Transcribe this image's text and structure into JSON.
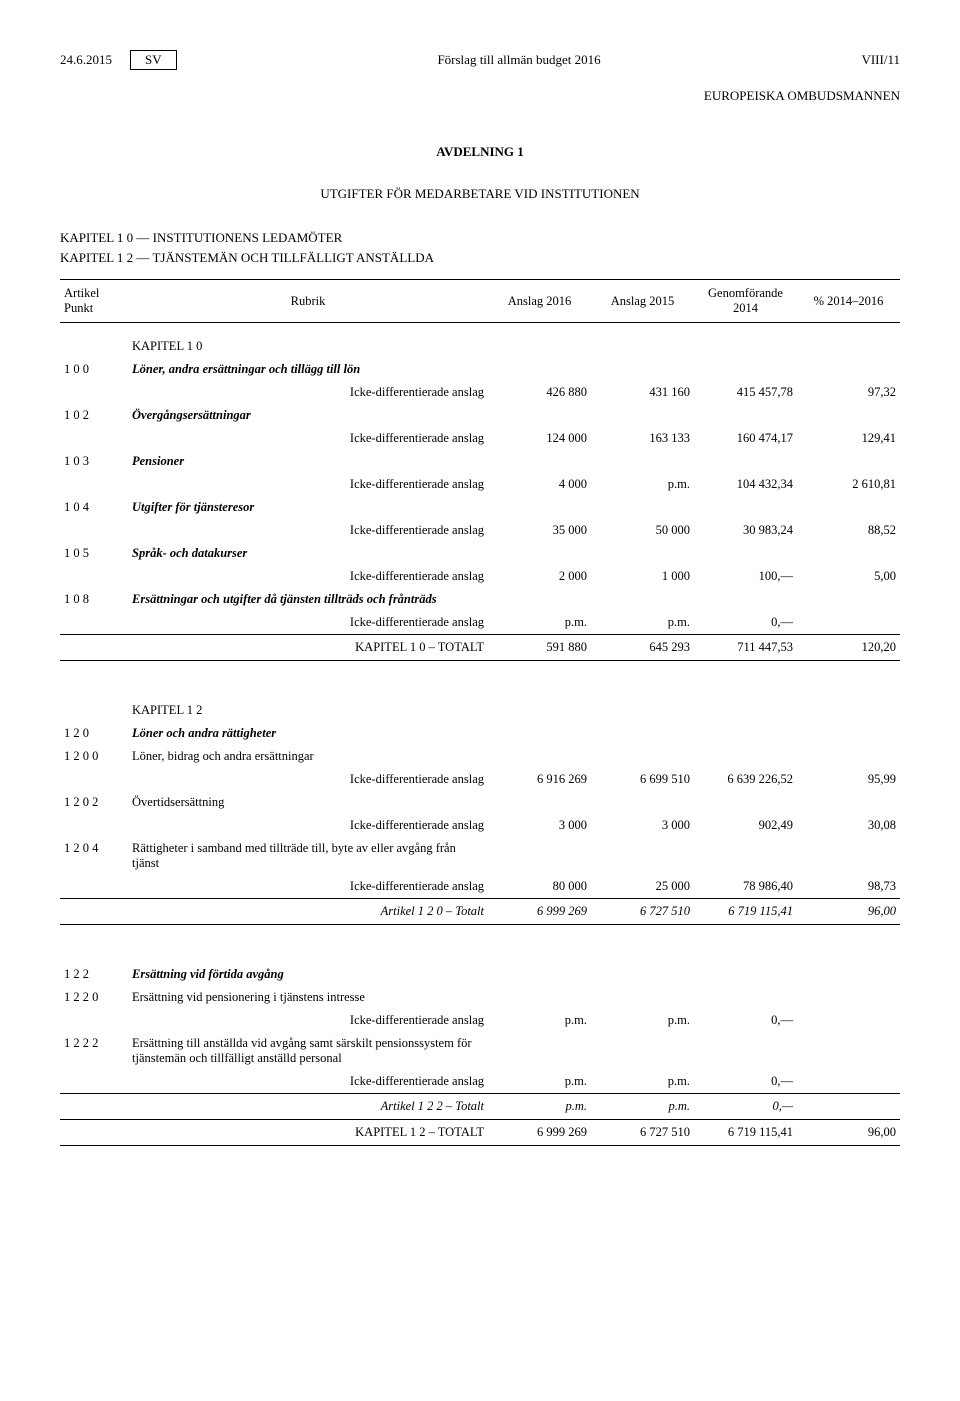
{
  "header": {
    "date": "24.6.2015",
    "lang": "SV",
    "center": "Förslag till allmän budget 2016",
    "right": "VIII/11"
  },
  "org": "EUROPEISKA OMBUDSMANNEN",
  "title": "AVDELNING 1",
  "subtitle": "UTGIFTER FÖR MEDARBETARE VID INSTITUTIONEN",
  "chapters": {
    "line1": "KAPITEL 1 0   —   INSTITUTIONENS LEDAMÖTER",
    "line2": "KAPITEL 1 2   —   TJÄNSTEMÄN OCH TILLFÄLLIGT ANSTÄLLDA"
  },
  "columns": {
    "ap": "Artikel\nPunkt",
    "rubrik": "Rubrik",
    "a2016": "Anslag 2016",
    "a2015": "Anslag 2015",
    "g2014": "Genomförande\n2014",
    "pct": "% 2014–2016"
  },
  "labels": {
    "icke": "Icke-differentierade anslag"
  },
  "k10": {
    "heading": "KAPITEL 1 0",
    "rows": [
      {
        "code": "1 0 0",
        "label": "Löner, andra ersättningar och tillägg till lön",
        "style": "bi",
        "a2016": "426 880",
        "a2015": "431 160",
        "g2014": "415 457,78",
        "pct": "97,32"
      },
      {
        "code": "1 0 2",
        "label": "Övergångsersättningar",
        "style": "bi",
        "a2016": "124 000",
        "a2015": "163 133",
        "g2014": "160 474,17",
        "pct": "129,41"
      },
      {
        "code": "1 0 3",
        "label": "Pensioner",
        "style": "bi",
        "a2016": "4 000",
        "a2015": "p.m.",
        "g2014": "104 432,34",
        "pct": "2 610,81"
      },
      {
        "code": "1 0 4",
        "label": "Utgifter för tjänsteresor",
        "style": "bi",
        "a2016": "35 000",
        "a2015": "50 000",
        "g2014": "30 983,24",
        "pct": "88,52"
      },
      {
        "code": "1 0 5",
        "label": "Språk- och datakurser",
        "style": "bi",
        "a2016": "2 000",
        "a2015": "1 000",
        "g2014": "100,—",
        "pct": "5,00"
      },
      {
        "code": "1 0 8",
        "label": "Ersättningar och utgifter då tjänsten tillträds och frånträds",
        "style": "bi",
        "a2016": "p.m.",
        "a2015": "p.m.",
        "g2014": "0,—",
        "pct": ""
      }
    ],
    "total": {
      "label": "KAPITEL 1 0 – TOTALT",
      "a2016": "591 880",
      "a2015": "645 293",
      "g2014": "711 447,53",
      "pct": "120,20"
    }
  },
  "k12": {
    "heading": "KAPITEL 1 2",
    "a120": {
      "code": "1 2 0",
      "label": "Löner och andra rättigheter",
      "rows": [
        {
          "code": "1 2 0 0",
          "label": "Löner, bidrag och andra ersättningar",
          "a2016": "6 916 269",
          "a2015": "6 699 510",
          "g2014": "6 639 226,52",
          "pct": "95,99"
        },
        {
          "code": "1 2 0 2",
          "label": "Övertidsersättning",
          "a2016": "3 000",
          "a2015": "3 000",
          "g2014": "902,49",
          "pct": "30,08"
        },
        {
          "code": "1 2 0 4",
          "label": "Rättigheter i samband med tillträde till, byte av eller avgång från tjänst",
          "a2016": "80 000",
          "a2015": "25 000",
          "g2014": "78 986,40",
          "pct": "98,73"
        }
      ],
      "subtotal": {
        "label": "Artikel 1 2 0 – Totalt",
        "a2016": "6 999 269",
        "a2015": "6 727 510",
        "g2014": "6 719 115,41",
        "pct": "96,00"
      }
    },
    "a122": {
      "code": "1 2 2",
      "label": "Ersättning vid förtida avgång",
      "rows": [
        {
          "code": "1 2 2 0",
          "label": "Ersättning vid pensionering i tjänstens intresse",
          "a2016": "p.m.",
          "a2015": "p.m.",
          "g2014": "0,—",
          "pct": ""
        },
        {
          "code": "1 2 2 2",
          "label": "Ersättning till anställda vid avgång samt särskilt pensionssystem för tjänstemän och tillfälligt anställd personal",
          "a2016": "p.m.",
          "a2015": "p.m.",
          "g2014": "0,—",
          "pct": ""
        }
      ],
      "subtotal": {
        "label": "Artikel 1 2 2 – Totalt",
        "a2016": "p.m.",
        "a2015": "p.m.",
        "g2014": "0,—",
        "pct": ""
      }
    },
    "total": {
      "label": "KAPITEL 1 2 – TOTALT",
      "a2016": "6 999 269",
      "a2015": "6 727 510",
      "g2014": "6 719 115,41",
      "pct": "96,00"
    }
  }
}
